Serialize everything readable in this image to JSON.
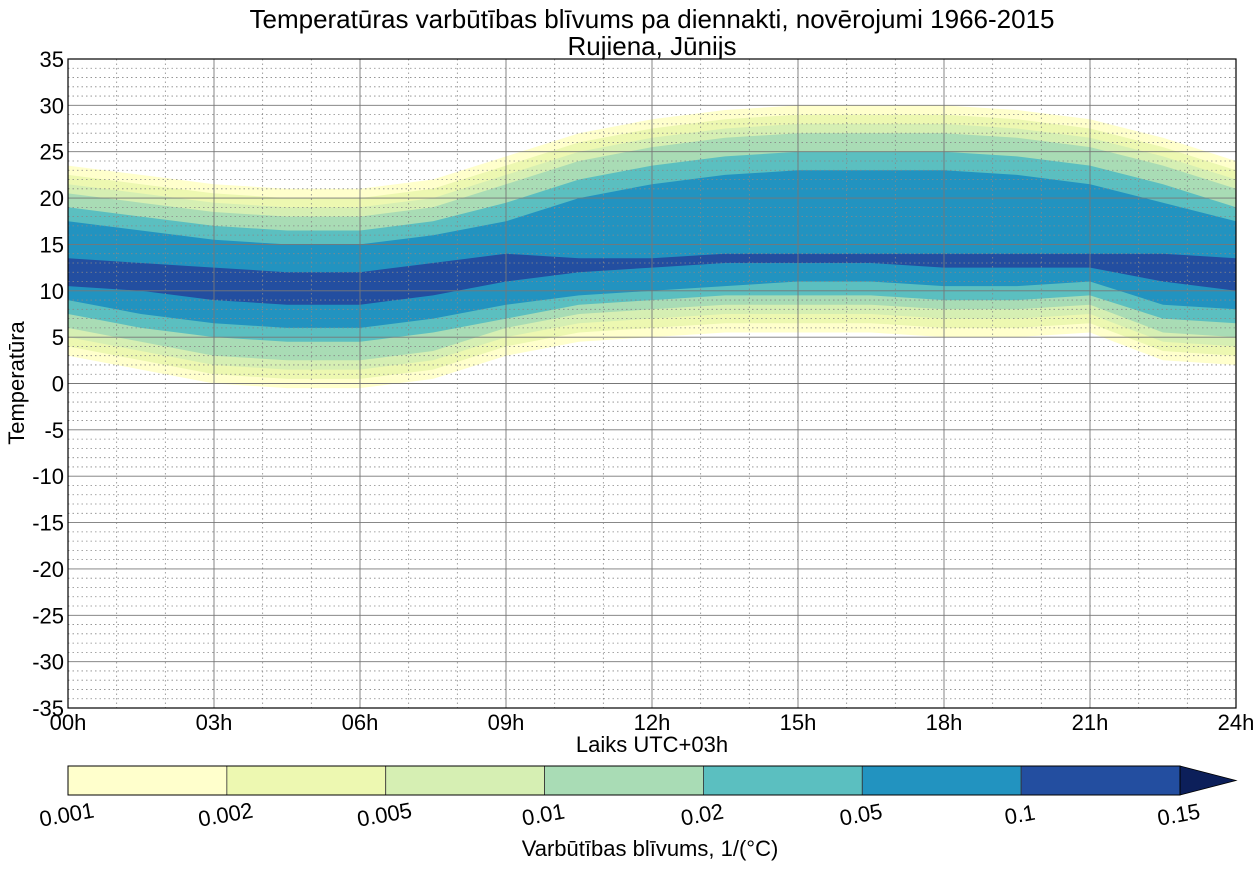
{
  "chart_data": {
    "type": "contour",
    "title": "Temperatūras varbūtības blīvums pa diennakti, novērojumi 1966-2015",
    "subtitle": "Rujiena, Jūnijs",
    "xlabel": "Laiks UTC+03h",
    "ylabel": "Temperatūra",
    "x_ticks": [
      "00h",
      "03h",
      "06h",
      "09h",
      "12h",
      "15h",
      "18h",
      "21h",
      "24h"
    ],
    "x_range": [
      0,
      24
    ],
    "y_ticks": [
      "35",
      "30",
      "25",
      "20",
      "15",
      "10",
      "5",
      "0",
      "-5",
      "-10",
      "-15",
      "-20",
      "-25",
      "-30",
      "-35"
    ],
    "y_range": [
      -35,
      35
    ],
    "grid": true,
    "colorbar": {
      "label": "Varbūtības blīvums, 1/(°C)",
      "levels": [
        "0.001",
        "0.002",
        "0.005",
        "0.01",
        "0.02",
        "0.05",
        "0.1",
        "0.15"
      ],
      "colors": [
        "#ffffcc",
        "#edf8b1",
        "#d6efb3",
        "#a9dcb5",
        "#5bbfc0",
        "#2293c0",
        "#234ea0",
        "#0c1f5a"
      ],
      "extend": "max"
    },
    "x": [
      0,
      1.5,
      3,
      4.5,
      6,
      7.5,
      9,
      10.5,
      12,
      13.5,
      15,
      16.5,
      18,
      19.5,
      21,
      22.5,
      24
    ],
    "contour_bands": [
      {
        "level": "0.001",
        "color": "#ffffcc",
        "lower": [
          3,
          1.5,
          0,
          -0.5,
          -0.5,
          0.5,
          3,
          4.5,
          5,
          5.5,
          5.5,
          5.5,
          5,
          5,
          5.5,
          2.5,
          2
        ],
        "upper": [
          23.5,
          22.5,
          21.5,
          21,
          21,
          22,
          24.5,
          27,
          28.5,
          29.5,
          30,
          30,
          30,
          29.5,
          28.5,
          26.5,
          24
        ]
      },
      {
        "level": "0.002",
        "color": "#edf8b1",
        "lower": [
          4,
          2.5,
          1,
          0.5,
          0.5,
          1.5,
          4,
          5.5,
          6,
          6.5,
          6.5,
          6.5,
          6,
          6,
          6.5,
          3.5,
          3
        ],
        "upper": [
          22.5,
          21.5,
          20.5,
          20,
          20,
          21,
          23.5,
          26,
          27.5,
          28.5,
          29,
          29,
          29,
          28.5,
          27.5,
          25.5,
          23
        ]
      },
      {
        "level": "0.005",
        "color": "#d6efb3",
        "lower": [
          5,
          3.5,
          2,
          1.5,
          1.5,
          2.5,
          5,
          6.5,
          7,
          7.5,
          7.5,
          7.5,
          7,
          7,
          7.5,
          4.5,
          4
        ],
        "upper": [
          21.5,
          20.5,
          19.5,
          19,
          19,
          20,
          22.5,
          25,
          26.5,
          27.5,
          28,
          28,
          28,
          27.5,
          26.5,
          24.5,
          22
        ]
      },
      {
        "level": "0.01",
        "color": "#a9dcb5",
        "lower": [
          6,
          4.5,
          3,
          2.5,
          2.5,
          3.5,
          6,
          7.5,
          8,
          8.5,
          8.5,
          8.5,
          8,
          8,
          8.5,
          5.5,
          5
        ],
        "upper": [
          20.5,
          19.5,
          18.5,
          18,
          18,
          19,
          21.5,
          24,
          25.5,
          26.5,
          27,
          27,
          27,
          26.5,
          25.5,
          23.5,
          21
        ]
      },
      {
        "level": "0.02",
        "color": "#5bbfc0",
        "lower": [
          7.5,
          6,
          5,
          4.5,
          4.5,
          5.5,
          7,
          8.5,
          9,
          9.5,
          9.5,
          9.5,
          9,
          9,
          9.5,
          7,
          6.5
        ],
        "upper": [
          19,
          18,
          17,
          16.5,
          16.5,
          17.5,
          19.5,
          22,
          23.5,
          24.5,
          25,
          25,
          25,
          24.5,
          23.5,
          21.5,
          19
        ]
      },
      {
        "level": "0.05",
        "color": "#2293c0",
        "lower": [
          9,
          7.5,
          6.5,
          6,
          6,
          7,
          8.5,
          9.5,
          10,
          10.5,
          11,
          11,
          10.5,
          10.5,
          11,
          8.5,
          8
        ],
        "upper": [
          17.5,
          16.5,
          15.5,
          15,
          15,
          16,
          17.5,
          20,
          21.5,
          22.5,
          23,
          23,
          23,
          22.5,
          21.5,
          19.5,
          17.5
        ]
      },
      {
        "level": "0.1",
        "color": "#234ea0",
        "lower": [
          10.5,
          10,
          9,
          8.5,
          8.5,
          9.5,
          11,
          12,
          12.5,
          13,
          13,
          13,
          12.5,
          12.5,
          12.5,
          11,
          10
        ],
        "upper": [
          13.5,
          13,
          12.5,
          12,
          12,
          13,
          14,
          13.5,
          13.5,
          14,
          14,
          14,
          14,
          14,
          14,
          14,
          13.5
        ]
      }
    ]
  }
}
